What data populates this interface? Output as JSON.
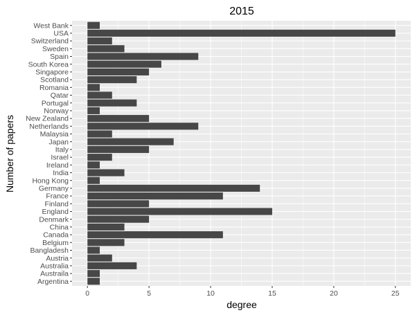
{
  "chart_data": {
    "type": "bar",
    "orientation": "horizontal",
    "title": "2015",
    "xlabel": "degree",
    "ylabel": "Number of papers",
    "xlim": [
      -1.25,
      26.25
    ],
    "xticks": [
      0,
      5,
      10,
      15,
      20,
      25
    ],
    "grid": true,
    "legend": "none",
    "categories": [
      "West Bank",
      "USA",
      "Switzerland",
      "Sweden",
      "Spain",
      "South Korea",
      "Singapore",
      "Scotland",
      "Romania",
      "Qatar",
      "Portugal",
      "Norway",
      "New Zealand",
      "Netherlands",
      "Malaysia",
      "Japan",
      "Italy",
      "Israel",
      "Ireland",
      "India",
      "Hong Kong",
      "Germany",
      "France",
      "Finland",
      "England",
      "Denmark",
      "China",
      "Canada",
      "Belgium",
      "Bangladesh",
      "Austria",
      "Australia",
      "Austraila",
      "Argentina"
    ],
    "values": [
      1,
      25,
      2,
      3,
      9,
      6,
      5,
      4,
      1,
      2,
      4,
      1,
      5,
      9,
      2,
      7,
      5,
      2,
      1,
      3,
      1,
      14,
      11,
      5,
      15,
      5,
      3,
      11,
      3,
      1,
      2,
      4,
      1,
      1
    ]
  },
  "colors": {
    "panel_background": "#ebebeb",
    "grid_major": "#ffffff",
    "bar_fill": "#474747",
    "tick_text": "#4d4d4d"
  }
}
